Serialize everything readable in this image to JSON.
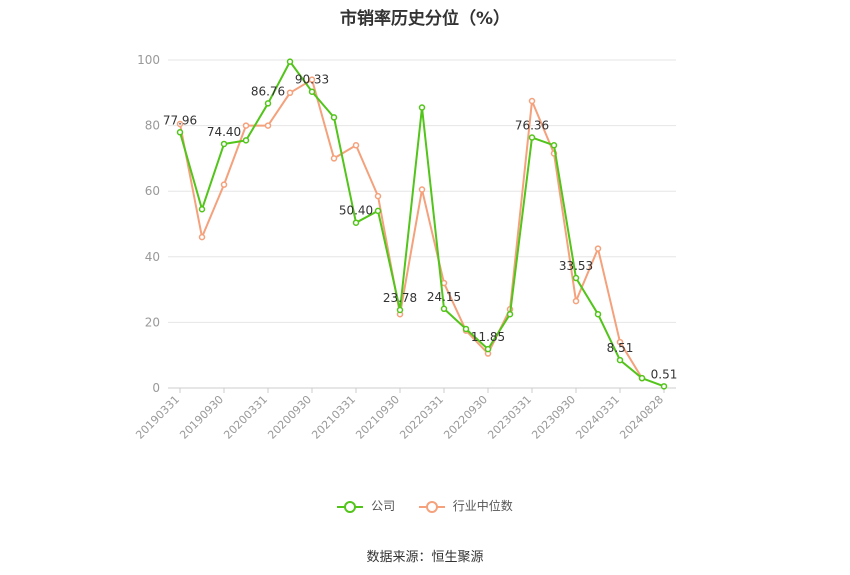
{
  "chart_data": {
    "type": "line",
    "title": "市销率历史分位（%）",
    "source": "数据来源：恒生聚源",
    "y_ticks": [
      0,
      20,
      40,
      60,
      80,
      100
    ],
    "ylim": [
      0,
      100
    ],
    "x": [
      "20190331",
      "20190630",
      "20190930",
      "20191231",
      "20200331",
      "20200630",
      "20200930",
      "20201231",
      "20210331",
      "20210630",
      "20210930",
      "20211231",
      "20220331",
      "20220630",
      "20220930",
      "20221231",
      "20230331",
      "20230630",
      "20230930",
      "20231231",
      "20240331",
      "20240630",
      "20240828"
    ],
    "x_tick_labels": [
      "20190331",
      "20190930",
      "20200331",
      "20200930",
      "20210331",
      "20210930",
      "20220331",
      "20220930",
      "20230331",
      "20230930",
      "20240331",
      "20240828"
    ],
    "series": [
      {
        "name": "公司",
        "color": "#52c41a",
        "values": [
          77.96,
          54.5,
          74.4,
          75.5,
          86.76,
          99.5,
          90.33,
          82.5,
          50.4,
          54.0,
          23.78,
          85.5,
          24.15,
          18.0,
          11.85,
          22.5,
          76.36,
          74.0,
          33.53,
          22.5,
          8.51,
          3.0,
          0.51
        ],
        "labels": {
          "0": "77.96",
          "2": "74.40",
          "4": "86.76",
          "6": "90.33",
          "8": "50.40",
          "10": "23.78",
          "12": "24.15",
          "14": "11.85",
          "16": "76.36",
          "18": "33.53",
          "20": "8.51",
          "22": "0.51"
        }
      },
      {
        "name": "行业中位数",
        "color": "#f4a17c",
        "values": [
          80.5,
          46.0,
          62.0,
          80.0,
          80.0,
          90.0,
          94.0,
          70.0,
          74.0,
          58.5,
          22.5,
          60.5,
          32.0,
          17.5,
          10.5,
          24.0,
          87.5,
          71.5,
          26.5,
          42.5,
          14.0,
          3.0,
          null
        ]
      }
    ]
  }
}
